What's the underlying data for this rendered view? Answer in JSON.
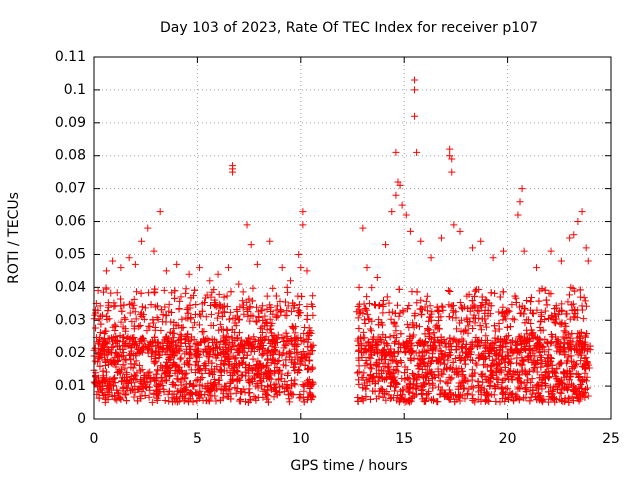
{
  "chart_data": {
    "type": "scatter",
    "title": "Day 103 of 2023, Rate Of TEC Index for receiver p107",
    "xlabel": "GPS time / hours",
    "ylabel": "ROTI / TECUs",
    "xlim": [
      0,
      25
    ],
    "ylim": [
      0,
      0.11
    ],
    "xticks": [
      "0",
      "5",
      "10",
      "15",
      "20",
      "25"
    ],
    "yticks": [
      "0",
      "0.01",
      "0.02",
      "0.03",
      "0.04",
      "0.05",
      "0.06",
      "0.07",
      "0.08",
      "0.09",
      "0.1",
      "0.11"
    ],
    "grid": true,
    "marker": "+",
    "color": "#ff0000",
    "gap": [
      10.6,
      12.7
    ],
    "dense_band": {
      "min": 0.005,
      "max": 0.025
    },
    "series": [
      {
        "points": [
          [
            0.2,
            0.039
          ],
          [
            0.6,
            0.045
          ],
          [
            0.9,
            0.048
          ],
          [
            1.3,
            0.046
          ],
          [
            1.7,
            0.049
          ],
          [
            2.0,
            0.047
          ],
          [
            2.3,
            0.054
          ],
          [
            2.6,
            0.058
          ],
          [
            2.9,
            0.051
          ],
          [
            3.2,
            0.063
          ],
          [
            3.5,
            0.045
          ],
          [
            4.0,
            0.047
          ],
          [
            4.6,
            0.044
          ],
          [
            5.1,
            0.046
          ],
          [
            5.6,
            0.042
          ],
          [
            6.0,
            0.044
          ],
          [
            6.5,
            0.046
          ],
          [
            6.7,
            0.077
          ],
          [
            6.7,
            0.076
          ],
          [
            6.7,
            0.075
          ],
          [
            7.0,
            0.041
          ],
          [
            7.4,
            0.059
          ],
          [
            7.6,
            0.053
          ],
          [
            7.9,
            0.047
          ],
          [
            8.5,
            0.054
          ],
          [
            9.1,
            0.046
          ],
          [
            9.5,
            0.042
          ],
          [
            9.9,
            0.05
          ],
          [
            10.0,
            0.046
          ],
          [
            10.1,
            0.063
          ],
          [
            10.1,
            0.059
          ],
          [
            10.3,
            0.045
          ],
          [
            13.0,
            0.058
          ],
          [
            13.2,
            0.046
          ],
          [
            13.7,
            0.043
          ],
          [
            14.1,
            0.053
          ],
          [
            14.4,
            0.063
          ],
          [
            14.6,
            0.068
          ],
          [
            14.7,
            0.072
          ],
          [
            14.8,
            0.071
          ],
          [
            14.6,
            0.081
          ],
          [
            14.9,
            0.065
          ],
          [
            15.1,
            0.062
          ],
          [
            15.3,
            0.057
          ],
          [
            15.5,
            0.103
          ],
          [
            15.5,
            0.1
          ],
          [
            15.5,
            0.092
          ],
          [
            15.6,
            0.081
          ],
          [
            15.8,
            0.054
          ],
          [
            16.3,
            0.049
          ],
          [
            16.8,
            0.055
          ],
          [
            17.2,
            0.082
          ],
          [
            17.2,
            0.08
          ],
          [
            17.3,
            0.079
          ],
          [
            17.3,
            0.075
          ],
          [
            17.4,
            0.059
          ],
          [
            17.7,
            0.057
          ],
          [
            18.3,
            0.052
          ],
          [
            18.7,
            0.054
          ],
          [
            19.3,
            0.049
          ],
          [
            19.8,
            0.051
          ],
          [
            20.5,
            0.062
          ],
          [
            20.6,
            0.066
          ],
          [
            20.7,
            0.07
          ],
          [
            20.8,
            0.051
          ],
          [
            21.4,
            0.046
          ],
          [
            22.1,
            0.051
          ],
          [
            22.6,
            0.048
          ],
          [
            23.0,
            0.055
          ],
          [
            23.2,
            0.056
          ],
          [
            23.4,
            0.06
          ],
          [
            23.6,
            0.063
          ],
          [
            23.8,
            0.052
          ],
          [
            23.9,
            0.048
          ]
        ]
      }
    ]
  }
}
